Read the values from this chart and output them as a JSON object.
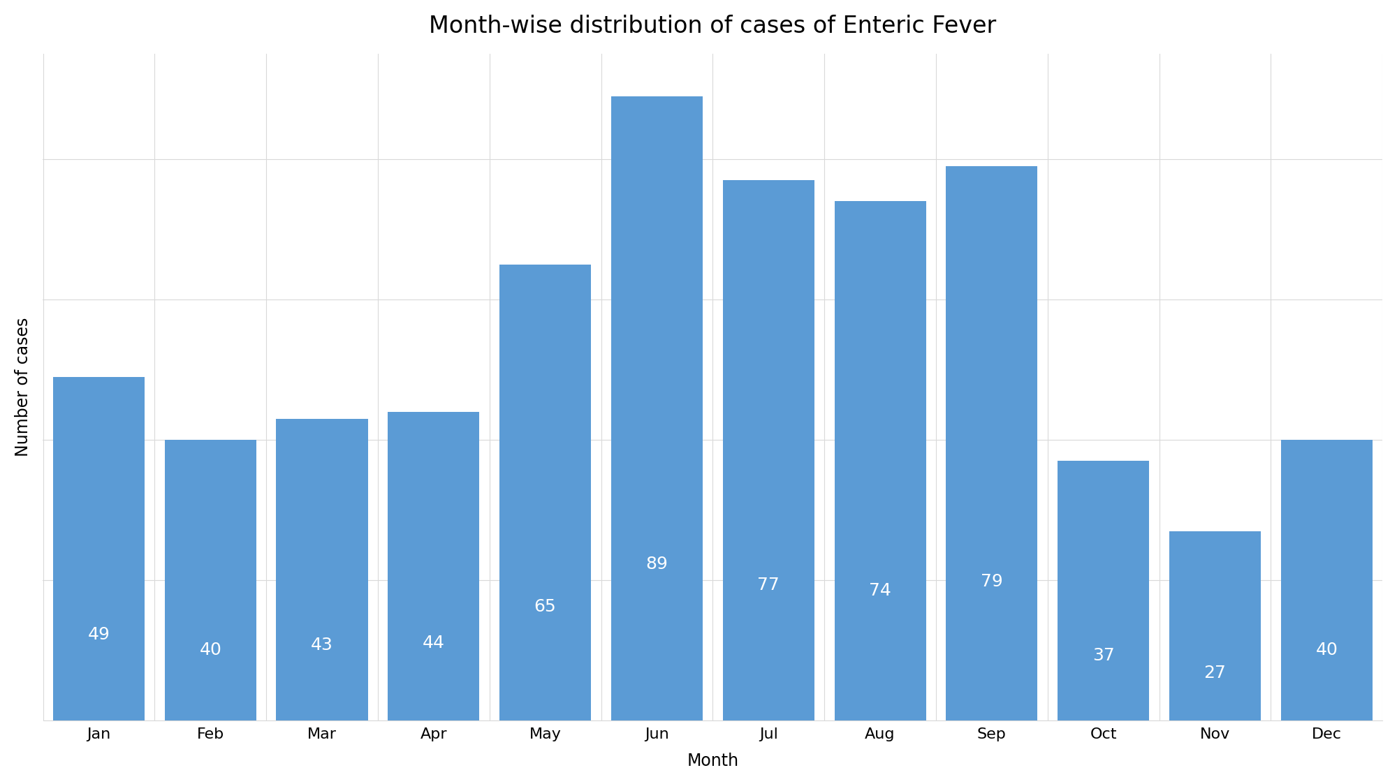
{
  "title": "Month-wise distribution of cases of Enteric Fever",
  "xlabel": "Month",
  "ylabel": "Number of cases",
  "categories": [
    "Jan",
    "Feb",
    "Mar",
    "Apr",
    "May",
    "Jun",
    "Jul",
    "Aug",
    "Sep",
    "Oct",
    "Nov",
    "Dec"
  ],
  "values": [
    49,
    40,
    43,
    44,
    65,
    89,
    77,
    74,
    79,
    37,
    27,
    40
  ],
  "bar_color": "#5b9bd5",
  "label_color": "#ffffff",
  "title_fontsize": 24,
  "axis_label_fontsize": 17,
  "tick_fontsize": 16,
  "bar_label_fontsize": 18,
  "background_color": "#ffffff",
  "ylim_max": 95,
  "grid_color": "#d9d9d9",
  "bar_width": 0.82
}
